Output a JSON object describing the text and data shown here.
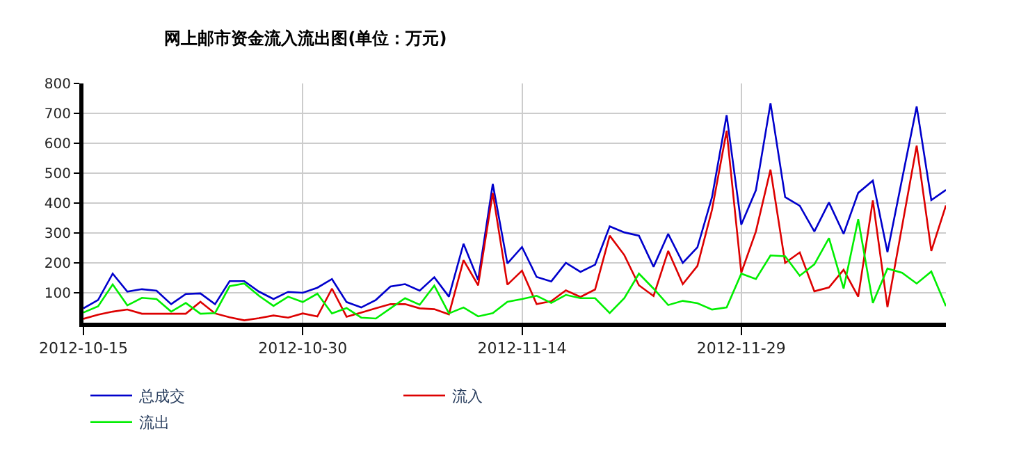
{
  "chart_data": {
    "type": "line",
    "title": "网上邮市资金流入流出图(单位：万元)",
    "x": [
      "2012-10-15",
      "2012-10-16",
      "2012-10-17",
      "2012-10-18",
      "2012-10-19",
      "2012-10-20",
      "2012-10-21",
      "2012-10-22",
      "2012-10-23",
      "2012-10-24",
      "2012-10-25",
      "2012-10-26",
      "2012-10-27",
      "2012-10-28",
      "2012-10-29",
      "2012-10-30",
      "2012-10-31",
      "2012-11-01",
      "2012-11-02",
      "2012-11-03",
      "2012-11-04",
      "2012-11-05",
      "2012-11-06",
      "2012-11-07",
      "2012-11-08",
      "2012-11-09",
      "2012-11-10",
      "2012-11-11",
      "2012-11-12",
      "2012-11-13",
      "2012-11-14",
      "2012-11-15",
      "2012-11-16",
      "2012-11-17",
      "2012-11-18",
      "2012-11-19",
      "2012-11-20",
      "2012-11-21",
      "2012-11-22",
      "2012-11-23",
      "2012-11-24",
      "2012-11-25",
      "2012-11-26",
      "2012-11-27",
      "2012-11-28",
      "2012-11-29",
      "2012-11-30",
      "2012-12-01",
      "2012-12-02",
      "2012-12-03",
      "2012-12-04",
      "2012-12-05",
      "2012-12-06",
      "2012-12-07",
      "2012-12-08",
      "2012-12-09",
      "2012-12-10",
      "2012-12-11",
      "2012-12-12",
      "2012-12-13"
    ],
    "series": [
      {
        "name": "总成交",
        "color": "#0000cc",
        "values": [
          48,
          76,
          164,
          104,
          112,
          107,
          62,
          96,
          98,
          62,
          139,
          139,
          104,
          79,
          103,
          100,
          117,
          146,
          69,
          51,
          76,
          121,
          129,
          107,
          152,
          87,
          264,
          143,
          464,
          198,
          253,
          153,
          138,
          200,
          170,
          194,
          322,
          302,
          291,
          187,
          297,
          200,
          252,
          420,
          694,
          328,
          443,
          734,
          420,
          391,
          305,
          402,
          297,
          434,
          475,
          236,
          480,
          723,
          410,
          444
        ]
      },
      {
        "name": "流入",
        "color": "#dd0000",
        "values": [
          13,
          27,
          37,
          44,
          30,
          30,
          30,
          30,
          70,
          31,
          18,
          8,
          15,
          24,
          17,
          31,
          21,
          114,
          20,
          34,
          48,
          62,
          62,
          48,
          45,
          28,
          209,
          125,
          434,
          127,
          174,
          62,
          72,
          108,
          86,
          111,
          291,
          226,
          125,
          89,
          240,
          129,
          190,
          378,
          642,
          167,
          305,
          512,
          200,
          235,
          105,
          118,
          177,
          87,
          409,
          52,
          322,
          592,
          240,
          392
        ]
      },
      {
        "name": "流出",
        "color": "#00ee00",
        "values": [
          34,
          55,
          128,
          58,
          83,
          79,
          37,
          66,
          30,
          32,
          122,
          131,
          90,
          56,
          87,
          69,
          97,
          31,
          49,
          17,
          14,
          48,
          82,
          60,
          124,
          31,
          51,
          21,
          32,
          70,
          79,
          90,
          66,
          93,
          82,
          82,
          32,
          82,
          164,
          114,
          59,
          73,
          65,
          44,
          51,
          164,
          146,
          225,
          222,
          157,
          195,
          283,
          114,
          346,
          66,
          181,
          167,
          131,
          171,
          55
        ]
      }
    ],
    "xlim": [
      "2012-10-15",
      "2012-12-13"
    ],
    "xticks": [
      "2012-10-15",
      "2012-10-30",
      "2012-11-14",
      "2012-11-29"
    ],
    "ylim": [
      0,
      800
    ],
    "yticks": [
      100,
      200,
      300,
      400,
      500,
      600,
      700,
      800
    ],
    "grid": true,
    "legend": "bottom",
    "marker": "none",
    "line_style": "solid"
  }
}
